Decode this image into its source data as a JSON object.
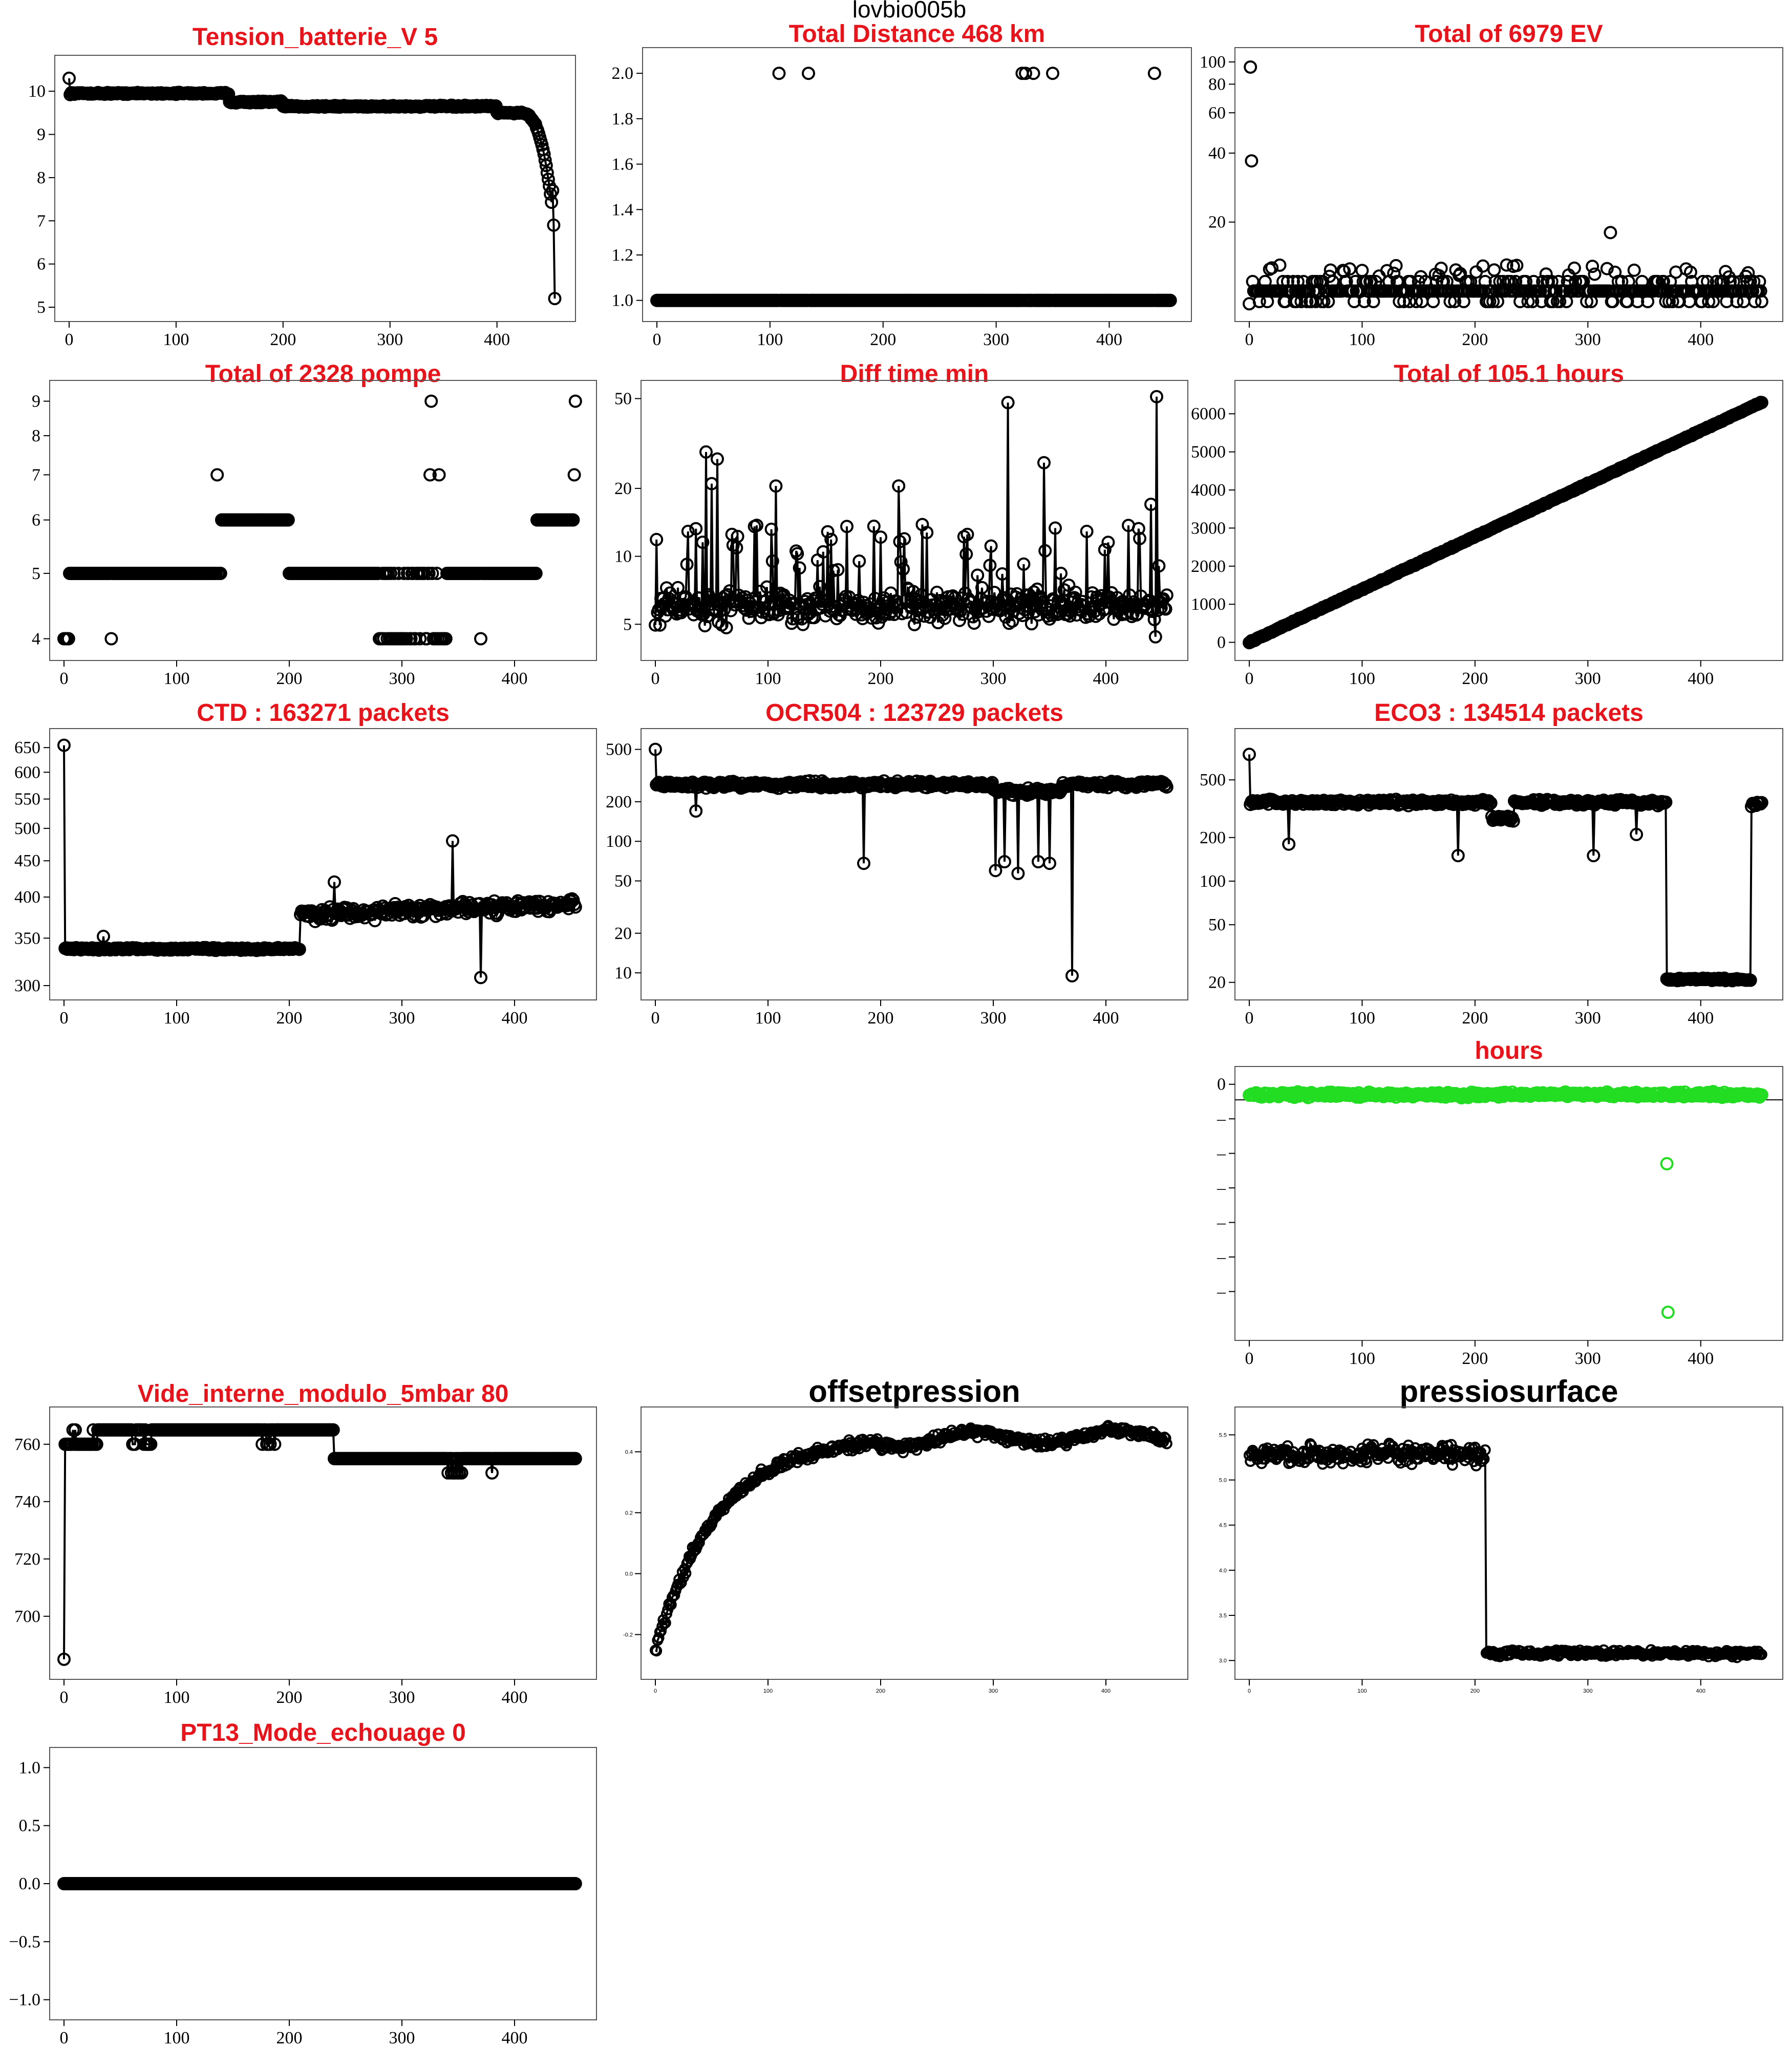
{
  "main_title": "lovbio005b",
  "colors": {
    "title": "#e8141c",
    "title_black": "#000000",
    "series_default": "#000000",
    "series_green": "#22dd22"
  },
  "chart_data": [
    {
      "title": "Tension_batterie_V 5",
      "type": "line",
      "xlim": [
        0,
        460
      ],
      "ylim": [
        5,
        10.5
      ],
      "xticks": [
        0,
        100,
        200,
        300,
        400
      ],
      "yticks": [
        5,
        6,
        7,
        8,
        9,
        10
      ],
      "yticklabels": [
        "5",
        "6",
        "7",
        "8",
        "9",
        "10"
      ],
      "shape": "battery",
      "series_color": "#000000"
    },
    {
      "title": "Total Distance  468  km",
      "type": "scatter",
      "xlim": [
        0,
        460
      ],
      "ylim": [
        0.97,
        2.05
      ],
      "xticks": [
        0,
        100,
        200,
        300,
        400
      ],
      "yticks": [
        1.0,
        1.2,
        1.4,
        1.6,
        1.8,
        2.0
      ],
      "yticklabels": [
        "1.0",
        "1.2",
        "1.4",
        "1.6",
        "1.8",
        "2.0"
      ],
      "shape": "distance",
      "series_color": "#000000"
    },
    {
      "title": "Total of  6979  EV",
      "type": "scatter",
      "xlim": [
        0,
        460
      ],
      "ylim": [
        8.5,
        100
      ],
      "log": true,
      "xticks": [
        0,
        100,
        200,
        300,
        400
      ],
      "yticks": [
        20,
        40,
        60,
        80,
        100
      ],
      "yticklabels": [
        "20",
        "40",
        "60",
        "80",
        "100"
      ],
      "shape": "ev",
      "series_color": "#000000"
    },
    {
      "title": "Total of  2328  pompe",
      "type": "scatter",
      "xlim": [
        0,
        460
      ],
      "ylim": [
        3.9,
        9.2
      ],
      "log": true,
      "xticks": [
        0,
        100,
        200,
        300,
        400
      ],
      "yticks": [
        4,
        5,
        6,
        7,
        8,
        9
      ],
      "yticklabels": [
        "4",
        "5",
        "6",
        "7",
        "8",
        "9"
      ],
      "shape": "pompe",
      "series_color": "#000000"
    },
    {
      "title": "Diff time min",
      "type": "line",
      "xlim": [
        0,
        460
      ],
      "ylim": [
        4,
        52
      ],
      "log": true,
      "xticks": [
        0,
        100,
        200,
        300,
        400
      ],
      "yticks": [
        5,
        10,
        20,
        50
      ],
      "yticklabels": [
        "5",
        "10",
        "20",
        "50"
      ],
      "shape": "difftime",
      "series_color": "#000000"
    },
    {
      "title": "Total of  105.1  hours",
      "type": "line",
      "xlim": [
        0,
        460
      ],
      "ylim": [
        -100,
        6500
      ],
      "xticks": [
        0,
        100,
        200,
        300,
        400
      ],
      "yticks": [
        0,
        1000,
        2000,
        3000,
        4000,
        5000,
        6000
      ],
      "yticklabels": [
        "0",
        "1000",
        "2000",
        "3000",
        "4000",
        "5000",
        "6000"
      ],
      "shape": "hours",
      "series_color": "#000000"
    },
    {
      "title": "CTD  : 163271  packets",
      "type": "line",
      "xlim": [
        0,
        460
      ],
      "ylim": [
        300,
        660
      ],
      "log": true,
      "xticks": [
        0,
        100,
        200,
        300,
        400
      ],
      "yticks": [
        300,
        350,
        400,
        450,
        500,
        550,
        600,
        650
      ],
      "yticklabels": [
        "300",
        "350",
        "400",
        "450",
        "500",
        "550",
        "600",
        "650"
      ],
      "shape": "ctd",
      "series_color": "#000000"
    },
    {
      "title": "OCR504  : 123729  packets",
      "type": "line",
      "xlim": [
        0,
        460
      ],
      "ylim": [
        8,
        560
      ],
      "log": true,
      "xticks": [
        0,
        100,
        200,
        300,
        400
      ],
      "yticks": [
        10,
        20,
        50,
        100,
        200,
        500
      ],
      "yticklabels": [
        "10",
        "20",
        "50",
        "100",
        "200",
        "500"
      ],
      "shape": "ocr",
      "series_color": "#000000"
    },
    {
      "title": "ECO3  : 134514  packets",
      "type": "line",
      "xlim": [
        0,
        460
      ],
      "ylim": [
        19,
        900
      ],
      "log": true,
      "xticks": [
        0,
        100,
        200,
        300,
        400
      ],
      "yticks": [
        20,
        50,
        100,
        200,
        500
      ],
      "yticklabels": [
        "20",
        "50",
        "100",
        "200",
        "500"
      ],
      "shape": "eco",
      "series_color": "#000000"
    },
    {
      "title": "hours",
      "type": "scatter",
      "xlim": [
        0,
        460
      ],
      "ylim": [
        -7,
        0.1
      ],
      "xticks": [
        0,
        100,
        200,
        300,
        400
      ],
      "yticks": [
        0,
        -1,
        -2,
        -3,
        -4,
        -5,
        -6
      ],
      "yticklabels": [
        "0",
        "–",
        "–",
        "–",
        "–",
        "–",
        "–"
      ],
      "shape": "hoursdiff",
      "series_color": "#22dd22",
      "hline": -0.45
    },
    {
      "title": "Vide_interne_modulo_5mbar 80",
      "type": "line",
      "xlim": [
        0,
        460
      ],
      "ylim": [
        683,
        768
      ],
      "xticks": [
        0,
        100,
        200,
        300,
        400
      ],
      "yticks": [
        700,
        720,
        740,
        760
      ],
      "yticklabels": [
        "700",
        "720",
        "740",
        "760"
      ],
      "shape": "vide",
      "series_color": "#000000"
    },
    {
      "title": "offsetpression",
      "type": "line",
      "xlim": [
        0,
        460
      ],
      "ylim": [
        -0.3,
        0.5
      ],
      "xticks": [
        0,
        100,
        200,
        300,
        400
      ],
      "yticks": [
        -0.2,
        0.0,
        0.2,
        0.4
      ],
      "yticklabels": [
        "-0.2",
        "0.0",
        "0.2",
        "0.4"
      ],
      "shape": "offset",
      "series_color": "#000000"
    },
    {
      "title": "pressiosurface",
      "type": "line",
      "xlim": [
        0,
        460
      ],
      "ylim": [
        2.95,
        5.65
      ],
      "xticks": [
        0,
        100,
        200,
        300,
        400
      ],
      "yticks": [
        3.0,
        3.5,
        4.0,
        4.5,
        5.0,
        5.5
      ],
      "yticklabels": [
        "3.0",
        "3.5",
        "4.0",
        "4.5",
        "5.0",
        "5.5"
      ],
      "shape": "surface",
      "series_color": "#000000"
    },
    {
      "title": "PT13_Mode_echouage  0",
      "type": "line",
      "xlim": [
        0,
        460
      ],
      "ylim": [
        -1.05,
        1.05
      ],
      "xticks": [
        0,
        100,
        200,
        300,
        400
      ],
      "yticks": [
        -1.0,
        -0.5,
        0.0,
        0.5,
        1.0
      ],
      "yticklabels": [
        "−1.0",
        "−0.5",
        "0.0",
        "0.5",
        "1.0"
      ],
      "shape": "echouage",
      "series_color": "#000000"
    }
  ]
}
